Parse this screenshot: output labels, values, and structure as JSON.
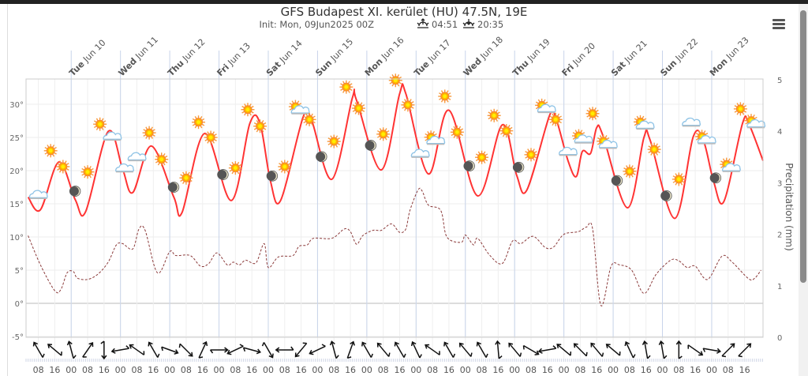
{
  "title": "GFS Budapest XI. kerület (HU) 47.5N, 19E",
  "subtitle": {
    "init": "Init: Mon, 09Jun2025 00Z",
    "sunrise": "04:51",
    "sunset": "20:35"
  },
  "menu_icon": "hamburger-icon",
  "colors": {
    "temperature": "#ff3333",
    "dewpoint": "#8b3a3a",
    "grid": "#e6e6e6",
    "day_grid": "#c8d4ea"
  },
  "chart_data": {
    "type": "line",
    "title": "GFS Budapest XI. kerület (HU) 47.5N, 19E",
    "xrange": [
      "2025-06-09T02",
      "2025-06-24T01"
    ],
    "y_left": {
      "range": [
        -5,
        35
      ],
      "ticks": [
        "30°",
        "25°",
        "20°",
        "15°",
        "10°",
        "5°",
        "0°",
        "-5°"
      ],
      "tick_values": [
        30,
        25,
        20,
        15,
        10,
        5,
        0,
        -5
      ]
    },
    "y_right": {
      "label": "Precipitation (mm)",
      "range": [
        0,
        5
      ],
      "ticks": [
        "5",
        "4",
        "3",
        "2",
        "1",
        "0"
      ],
      "tick_values": [
        5,
        4,
        3,
        2,
        1,
        0
      ]
    },
    "grid": true,
    "days": [
      {
        "t": "2025-06-10T00",
        "weekday": "Tue",
        "date": "Jun 10"
      },
      {
        "t": "2025-06-11T00",
        "weekday": "Wed",
        "date": "Jun 11"
      },
      {
        "t": "2025-06-12T00",
        "weekday": "Thu",
        "date": "Jun 12"
      },
      {
        "t": "2025-06-13T00",
        "weekday": "Fri",
        "date": "Jun 13"
      },
      {
        "t": "2025-06-14T00",
        "weekday": "Sat",
        "date": "Jun 14"
      },
      {
        "t": "2025-06-15T00",
        "weekday": "Sun",
        "date": "Jun 15"
      },
      {
        "t": "2025-06-16T00",
        "weekday": "Mon",
        "date": "Jun 16"
      },
      {
        "t": "2025-06-17T00",
        "weekday": "Tue",
        "date": "Jun 17"
      },
      {
        "t": "2025-06-18T00",
        "weekday": "Wed",
        "date": "Jun 18"
      },
      {
        "t": "2025-06-19T00",
        "weekday": "Thu",
        "date": "Jun 19"
      },
      {
        "t": "2025-06-20T00",
        "weekday": "Fri",
        "date": "Jun 20"
      },
      {
        "t": "2025-06-21T00",
        "weekday": "Sat",
        "date": "Jun 21"
      },
      {
        "t": "2025-06-22T00",
        "weekday": "Sun",
        "date": "Jun 22"
      },
      {
        "t": "2025-06-23T00",
        "weekday": "Mon",
        "date": "Jun 23"
      }
    ],
    "temperature": [
      [
        "2025-06-09T03",
        16.0
      ],
      [
        "2025-06-09T09",
        14.1
      ],
      [
        "2025-06-09T18",
        21.3
      ],
      [
        "2025-06-10T02",
        15.6
      ],
      [
        "2025-06-10T07",
        13.8
      ],
      [
        "2025-06-10T18",
        25.9
      ],
      [
        "2025-06-11T01",
        20.3
      ],
      [
        "2025-06-11T06",
        16.7
      ],
      [
        "2025-06-11T15",
        23.7
      ],
      [
        "2025-06-12T02",
        16.0
      ],
      [
        "2025-06-12T06",
        13.7
      ],
      [
        "2025-06-12T17",
        25.6
      ],
      [
        "2025-06-13T06",
        15.5
      ],
      [
        "2025-06-13T15",
        27.1
      ],
      [
        "2025-06-13T20",
        27.1
      ],
      [
        "2025-06-14T01",
        18.5
      ],
      [
        "2025-06-14T06",
        15.5
      ],
      [
        "2025-06-14T17",
        28.1
      ],
      [
        "2025-06-14T21",
        27.7
      ],
      [
        "2025-06-15T07",
        18.7
      ],
      [
        "2025-06-15T17",
        31.0
      ],
      [
        "2025-06-15T19",
        30.6
      ],
      [
        "2025-06-16T07",
        20.1
      ],
      [
        "2025-06-16T16",
        31.6
      ],
      [
        "2025-06-16T19",
        31.6
      ],
      [
        "2025-06-17T06",
        19.5
      ],
      [
        "2025-06-17T16",
        29.1
      ],
      [
        "2025-06-18T06",
        16.2
      ],
      [
        "2025-06-18T18",
        26.9
      ],
      [
        "2025-06-19T01",
        19.3
      ],
      [
        "2025-06-19T06",
        17.1
      ],
      [
        "2025-06-19T17",
        28.3
      ],
      [
        "2025-06-19T20",
        28.0
      ],
      [
        "2025-06-20T02",
        21.5
      ],
      [
        "2025-06-20T06",
        19.1
      ],
      [
        "2025-06-20T09",
        22.9
      ],
      [
        "2025-06-20T13",
        22.6
      ],
      [
        "2025-06-20T16",
        26.5
      ],
      [
        "2025-06-20T19",
        25.3
      ],
      [
        "2025-06-21T07",
        14.4
      ],
      [
        "2025-06-21T15",
        25.0
      ],
      [
        "2025-06-21T18",
        24.6
      ],
      [
        "2025-06-22T06",
        12.8
      ],
      [
        "2025-06-22T15",
        25.1
      ],
      [
        "2025-06-22T20",
        24.5
      ],
      [
        "2025-06-23T01",
        18.3
      ],
      [
        "2025-06-23T06",
        15.4
      ],
      [
        "2025-06-23T15",
        27.1
      ],
      [
        "2025-06-23T18",
        27.1
      ],
      [
        "2025-06-24T01",
        21.5
      ]
    ],
    "dewpoint": [
      [
        "2025-06-09T03",
        10.2
      ],
      [
        "2025-06-09T09",
        5.8
      ],
      [
        "2025-06-09T16",
        1.9
      ],
      [
        "2025-06-09T19",
        2.1
      ],
      [
        "2025-06-09T22",
        4.6
      ],
      [
        "2025-06-10T01",
        4.8
      ],
      [
        "2025-06-10T03",
        3.8
      ],
      [
        "2025-06-10T08",
        3.6
      ],
      [
        "2025-06-10T13",
        4.4
      ],
      [
        "2025-06-10T18",
        6.2
      ],
      [
        "2025-06-10T22",
        8.8
      ],
      [
        "2025-06-11T01",
        9.0
      ],
      [
        "2025-06-11T06",
        8.2
      ],
      [
        "2025-06-11T09",
        11.2
      ],
      [
        "2025-06-11T12",
        11.0
      ],
      [
        "2025-06-11T18",
        4.6
      ],
      [
        "2025-06-12T00",
        7.8
      ],
      [
        "2025-06-12T03",
        7.2
      ],
      [
        "2025-06-12T10",
        7.2
      ],
      [
        "2025-06-12T15",
        5.6
      ],
      [
        "2025-06-12T19",
        6.0
      ],
      [
        "2025-06-12T23",
        7.6
      ],
      [
        "2025-06-13T04",
        5.8
      ],
      [
        "2025-06-13T07",
        6.2
      ],
      [
        "2025-06-13T10",
        5.8
      ],
      [
        "2025-06-13T13",
        6.5
      ],
      [
        "2025-06-13T18",
        6.1
      ],
      [
        "2025-06-13T22",
        9.0
      ],
      [
        "2025-06-14T00",
        5.4
      ],
      [
        "2025-06-14T05",
        7.0
      ],
      [
        "2025-06-14T12",
        7.2
      ],
      [
        "2025-06-14T15",
        8.6
      ],
      [
        "2025-06-14T19",
        8.8
      ],
      [
        "2025-06-14T22",
        9.8
      ],
      [
        "2025-06-15T07",
        9.8
      ],
      [
        "2025-06-15T13",
        11.2
      ],
      [
        "2025-06-15T16",
        10.8
      ],
      [
        "2025-06-15T19",
        8.9
      ],
      [
        "2025-06-15T22",
        10.2
      ],
      [
        "2025-06-16T03",
        11.0
      ],
      [
        "2025-06-16T07",
        11.0
      ],
      [
        "2025-06-16T11",
        11.9
      ],
      [
        "2025-06-16T13",
        11.8
      ],
      [
        "2025-06-16T16",
        10.7
      ],
      [
        "2025-06-16T19",
        11.2
      ],
      [
        "2025-06-16T21",
        14.0
      ],
      [
        "2025-06-17T01",
        17.1
      ],
      [
        "2025-06-17T03",
        16.9
      ],
      [
        "2025-06-17T06",
        14.8
      ],
      [
        "2025-06-17T12",
        14.0
      ],
      [
        "2025-06-17T15",
        10.0
      ],
      [
        "2025-06-17T22",
        9.2
      ],
      [
        "2025-06-18T00",
        10.3
      ],
      [
        "2025-06-18T04",
        8.8
      ],
      [
        "2025-06-18T06",
        9.8
      ],
      [
        "2025-06-18T12",
        7.2
      ],
      [
        "2025-06-18T18",
        6.0
      ],
      [
        "2025-06-18T23",
        9.4
      ],
      [
        "2025-06-19T03",
        9.0
      ],
      [
        "2025-06-19T09",
        10.1
      ],
      [
        "2025-06-19T15",
        8.4
      ],
      [
        "2025-06-19T19",
        8.5
      ],
      [
        "2025-06-20T00",
        10.4
      ],
      [
        "2025-06-20T07",
        10.8
      ],
      [
        "2025-06-20T11",
        11.5
      ],
      [
        "2025-06-20T14",
        11.2
      ],
      [
        "2025-06-20T18",
        -0.3
      ],
      [
        "2025-06-20T23",
        5.6
      ],
      [
        "2025-06-21T03",
        5.8
      ],
      [
        "2025-06-21T09",
        5.0
      ],
      [
        "2025-06-21T15",
        1.5
      ],
      [
        "2025-06-21T21",
        4.4
      ],
      [
        "2025-06-22T04",
        6.5
      ],
      [
        "2025-06-22T08",
        6.4
      ],
      [
        "2025-06-22T12",
        5.4
      ],
      [
        "2025-06-22T16",
        5.6
      ],
      [
        "2025-06-22T22",
        3.6
      ],
      [
        "2025-06-23T05",
        7.1
      ],
      [
        "2025-06-23T10",
        6.2
      ],
      [
        "2025-06-23T18",
        3.7
      ],
      [
        "2025-06-23T21",
        3.8
      ],
      [
        "2025-06-24T00",
        5.0
      ]
    ],
    "precipitation": [],
    "weather_icons": [
      [
        "2025-06-09T08",
        "cloud",
        16.4
      ],
      [
        "2025-06-09T14",
        "sun",
        23.0
      ],
      [
        "2025-06-09T20",
        "sun",
        20.6
      ],
      [
        "2025-06-10T02",
        "moon",
        16.9
      ],
      [
        "2025-06-10T08",
        "sun",
        19.8
      ],
      [
        "2025-06-10T14",
        "sun",
        27.0
      ],
      [
        "2025-06-10T20",
        "cloud",
        25.2
      ],
      [
        "2025-06-11T02",
        "cloud",
        20.4
      ],
      [
        "2025-06-11T08",
        "cloud",
        22.1
      ],
      [
        "2025-06-11T14",
        "sun",
        25.7
      ],
      [
        "2025-06-11T20",
        "sun",
        21.7
      ],
      [
        "2025-06-12T02",
        "moon",
        17.5
      ],
      [
        "2025-06-12T08",
        "sun",
        18.9
      ],
      [
        "2025-06-12T14",
        "sun",
        27.3
      ],
      [
        "2025-06-12T20",
        "sun",
        25.0
      ],
      [
        "2025-06-13T02",
        "moon",
        19.4
      ],
      [
        "2025-06-13T08",
        "sun",
        20.4
      ],
      [
        "2025-06-13T14",
        "sun",
        29.2
      ],
      [
        "2025-06-13T20",
        "sun",
        26.7
      ],
      [
        "2025-06-14T02",
        "moon",
        19.2
      ],
      [
        "2025-06-14T08",
        "sun",
        20.6
      ],
      [
        "2025-06-14T14",
        "sun-cloud",
        29.4
      ],
      [
        "2025-06-14T20",
        "sun",
        27.7
      ],
      [
        "2025-06-15T02",
        "moon",
        22.1
      ],
      [
        "2025-06-15T08",
        "sun",
        24.4
      ],
      [
        "2025-06-15T14",
        "sun",
        32.6
      ],
      [
        "2025-06-15T20",
        "sun",
        29.4
      ],
      [
        "2025-06-16T02",
        "moon",
        23.8
      ],
      [
        "2025-06-16T08",
        "sun",
        25.5
      ],
      [
        "2025-06-16T14",
        "sun",
        33.6
      ],
      [
        "2025-06-16T20",
        "sun",
        29.9
      ],
      [
        "2025-06-17T02",
        "cloud",
        22.6
      ],
      [
        "2025-06-17T08",
        "sun-cloud",
        24.8
      ],
      [
        "2025-06-17T14",
        "sun",
        31.2
      ],
      [
        "2025-06-17T20",
        "sun",
        25.8
      ],
      [
        "2025-06-18T02",
        "moon",
        20.7
      ],
      [
        "2025-06-18T08",
        "sun",
        22.0
      ],
      [
        "2025-06-18T14",
        "sun",
        28.3
      ],
      [
        "2025-06-18T20",
        "sun",
        26.0
      ],
      [
        "2025-06-19T02",
        "moon",
        20.5
      ],
      [
        "2025-06-19T08",
        "sun",
        22.4
      ],
      [
        "2025-06-19T14",
        "sun-cloud",
        29.6
      ],
      [
        "2025-06-19T20",
        "sun",
        27.7
      ],
      [
        "2025-06-20T02",
        "cloud",
        22.9
      ],
      [
        "2025-06-20T08",
        "sun-cloud",
        25.0
      ],
      [
        "2025-06-20T14",
        "sun",
        28.6
      ],
      [
        "2025-06-20T20",
        "sun-cloud",
        24.2
      ],
      [
        "2025-06-21T02",
        "moon",
        18.5
      ],
      [
        "2025-06-21T08",
        "sun",
        19.9
      ],
      [
        "2025-06-21T14",
        "sun-cloud",
        27.1
      ],
      [
        "2025-06-21T20",
        "sun",
        23.2
      ],
      [
        "2025-06-22T02",
        "moon",
        16.2
      ],
      [
        "2025-06-22T08",
        "sun",
        18.7
      ],
      [
        "2025-06-22T14",
        "cloud",
        27.3
      ],
      [
        "2025-06-22T20",
        "sun-cloud",
        24.9
      ],
      [
        "2025-06-23T02",
        "moon",
        18.9
      ],
      [
        "2025-06-23T08",
        "sun-cloud",
        20.7
      ],
      [
        "2025-06-23T14",
        "sun",
        29.3
      ],
      [
        "2025-06-23T20",
        "sun-cloud",
        27.3
      ]
    ],
    "wind_direction_arrows_deg": [
      150,
      130,
      165,
      215,
      0,
      80,
      125,
      150,
      290,
      315,
      205,
      270,
      65,
      285,
      330,
      90,
      40,
      65,
      165,
      200,
      150,
      140,
      150,
      155,
      125,
      150,
      140,
      150,
      175,
      140,
      300,
      80,
      130,
      135,
      140,
      130,
      155,
      170,
      170,
      180,
      305,
      280,
      225,
      225
    ],
    "x_tick_labels": [
      "08",
      "16",
      "00",
      "08",
      "16",
      "00",
      "08",
      "16",
      "00",
      "08",
      "16",
      "00",
      "08",
      "16",
      "00",
      "08",
      "16",
      "00",
      "08",
      "16",
      "00",
      "08",
      "16",
      "00",
      "08",
      "16",
      "00",
      "08",
      "16",
      "00",
      "08",
      "16",
      "00",
      "08",
      "16",
      "00",
      "08",
      "16",
      "00",
      "08",
      "16",
      "00",
      "08",
      "16"
    ],
    "x_tick_start": "2025-06-09T08"
  }
}
